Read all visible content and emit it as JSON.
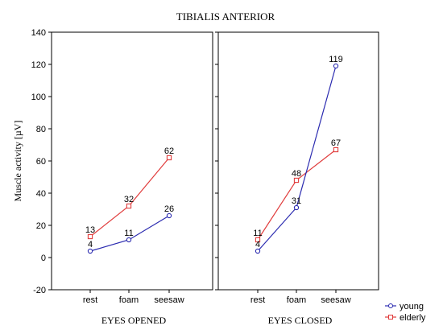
{
  "chart_data": {
    "type": "line",
    "title": "TIBIALIS ANTERIOR",
    "ylabel": "Muscle activity [µV]",
    "ylim": [
      -20,
      140
    ],
    "yticks": [
      -20,
      0,
      20,
      40,
      60,
      80,
      100,
      120,
      140
    ],
    "categories": [
      "rest",
      "foam",
      "seesaw"
    ],
    "legend_position": "bottom-right",
    "grid": false,
    "panels": [
      {
        "xlabel": "EYES OPENED",
        "series": [
          {
            "name": "young",
            "color": "#2b2bb0",
            "marker": "circle",
            "values": [
              4,
              11,
              26
            ]
          },
          {
            "name": "elderly",
            "color": "#e03c3c",
            "marker": "square",
            "values": [
              13,
              32,
              62
            ]
          }
        ]
      },
      {
        "xlabel": "EYES CLOSED",
        "series": [
          {
            "name": "young",
            "color": "#2b2bb0",
            "marker": "circle",
            "values": [
              4,
              31,
              119
            ]
          },
          {
            "name": "elderly",
            "color": "#e03c3c",
            "marker": "square",
            "values": [
              11,
              48,
              67
            ]
          }
        ]
      }
    ],
    "legend": [
      {
        "label": "young",
        "color": "#2b2bb0",
        "marker": "circle"
      },
      {
        "label": "elderly",
        "color": "#e03c3c",
        "marker": "square"
      }
    ]
  }
}
